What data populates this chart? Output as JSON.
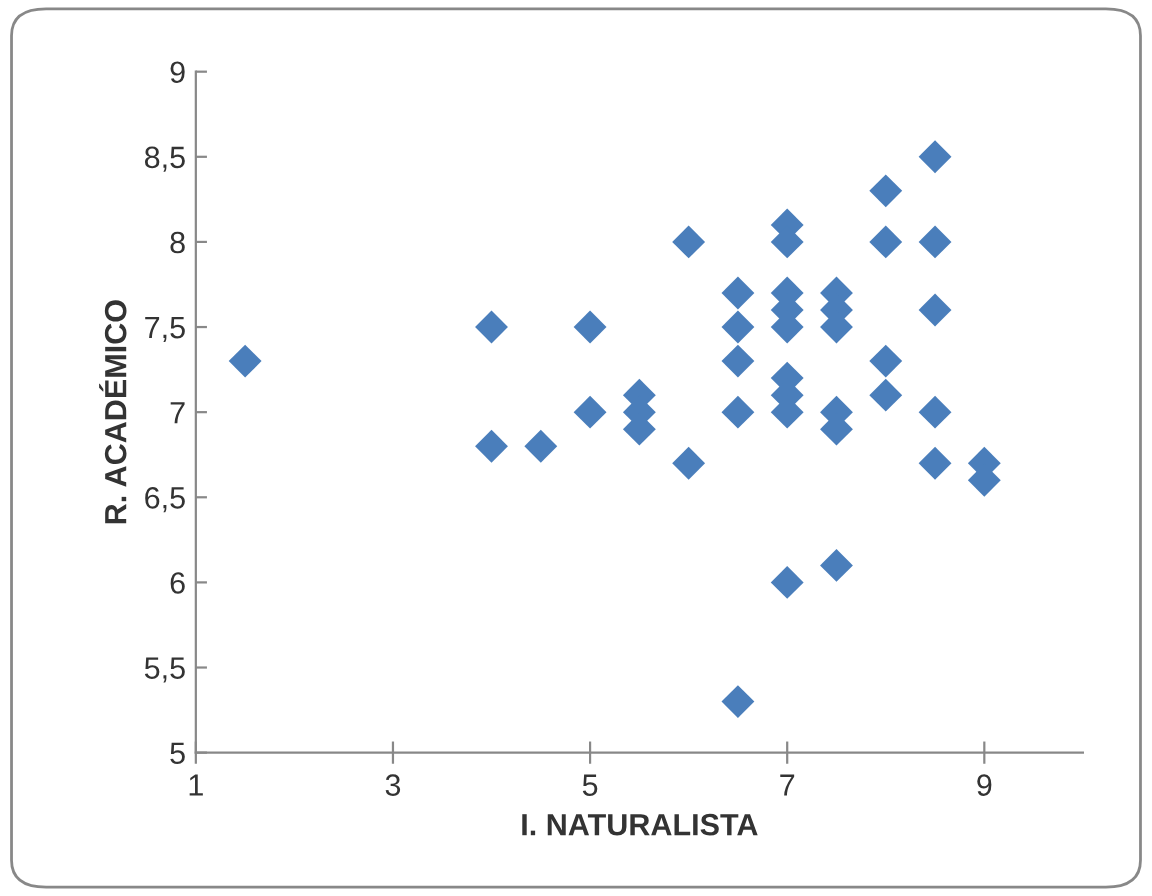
{
  "chart_data": {
    "type": "scatter",
    "xlabel": "I. NATURALISTA",
    "ylabel": "R. ACADÉMICO",
    "xlim": [
      1,
      10
    ],
    "xticks": [
      1,
      3,
      5,
      7,
      9
    ],
    "ylim": [
      5,
      9
    ],
    "yticks": [
      5,
      {
        "value": 5.5,
        "label": "5,5"
      },
      6,
      {
        "value": 6.5,
        "label": "6,5"
      },
      7,
      {
        "value": 7.5,
        "label": "7,5"
      },
      8,
      {
        "value": 8.5,
        "label": "8,5"
      },
      9
    ],
    "marker": "diamond",
    "grid": false,
    "legend": false,
    "series": [
      {
        "color": "#4a7ebb",
        "x": [
          1.5,
          4,
          4,
          4.5,
          5,
          5,
          5.5,
          5.5,
          5.5,
          6,
          6,
          6.5,
          6.5,
          6.5,
          6.5,
          6.5,
          7,
          7,
          7,
          7,
          7,
          7,
          7,
          7,
          7,
          7.5,
          7.5,
          7.5,
          7.5,
          7.5,
          7.5,
          8,
          8,
          8,
          8,
          8.5,
          8.5,
          8.5,
          8.5,
          8.5,
          9,
          9
        ],
        "values": [
          7.3,
          7.5,
          6.8,
          6.8,
          7.5,
          7.0,
          7.1,
          7.0,
          6.9,
          8.0,
          6.7,
          7.7,
          7.5,
          7.3,
          7.0,
          5.3,
          8.1,
          8.0,
          7.7,
          7.6,
          7.5,
          7.2,
          7.1,
          7.0,
          6.0,
          7.7,
          7.6,
          7.5,
          7.0,
          6.9,
          6.1,
          8.3,
          8.0,
          7.3,
          7.1,
          8.5,
          8.0,
          7.6,
          7.0,
          6.7,
          6.7,
          6.6
        ]
      }
    ]
  }
}
